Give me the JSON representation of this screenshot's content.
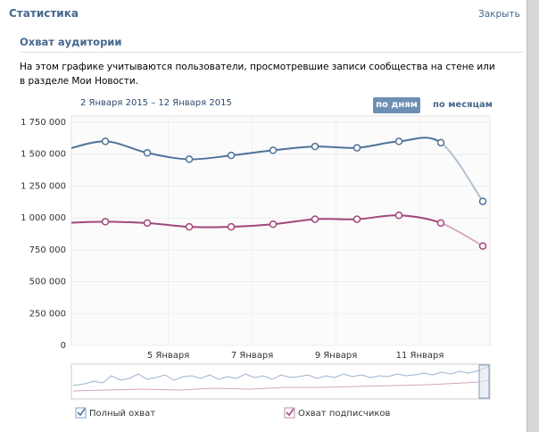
{
  "header": {
    "title": "Статистика",
    "close": "Закрыть"
  },
  "section": {
    "title": "Охват аудитории",
    "description": "На этом графике учитываются пользователи, просмотревшие записи сообщества на стене или в разделе Мои Новости."
  },
  "controls": {
    "date_range": "2 Января 2015 – 12 Января 2015",
    "by_day": "по дням",
    "by_month": "по месяцам"
  },
  "chart_data": {
    "type": "line",
    "x": [
      2.5,
      3.5,
      4.5,
      5.5,
      6.5,
      7.5,
      8.5,
      9.5,
      10.5,
      11.5,
      12.5
    ],
    "xlim": [
      2.69,
      12.67
    ],
    "xticks": [
      {
        "value": 5,
        "label": "5 Января"
      },
      {
        "value": 7,
        "label": "7 Января"
      },
      {
        "value": 9,
        "label": "9 Января"
      },
      {
        "value": 11,
        "label": "11 Января"
      }
    ],
    "ylim": [
      0,
      1750000
    ],
    "yticks": [
      0,
      {
        "value": 250000,
        "label": "250 000"
      },
      {
        "value": 500000,
        "label": "500 000"
      },
      {
        "value": 750000,
        "label": "750 000"
      },
      {
        "value": 1000000,
        "label": "1 000 000"
      },
      {
        "value": 1250000,
        "label": "1 250 000"
      },
      {
        "value": 1500000,
        "label": "1 500 000"
      },
      {
        "value": 1750000,
        "label": "1 750 000"
      }
    ],
    "grid": true,
    "series": [
      {
        "name": "Полный охват",
        "color": "#4f7399",
        "values": [
          1530000,
          1600000,
          1510000,
          1460000,
          1490000,
          1530000,
          1560000,
          1550000,
          1600000,
          1590000,
          1130000
        ]
      },
      {
        "name": "Охват подписчиков",
        "color": "#a2477a",
        "values": [
          960000,
          970000,
          960000,
          930000,
          930000,
          950000,
          990000,
          990000,
          1020000,
          960000,
          780000
        ]
      }
    ]
  }
}
